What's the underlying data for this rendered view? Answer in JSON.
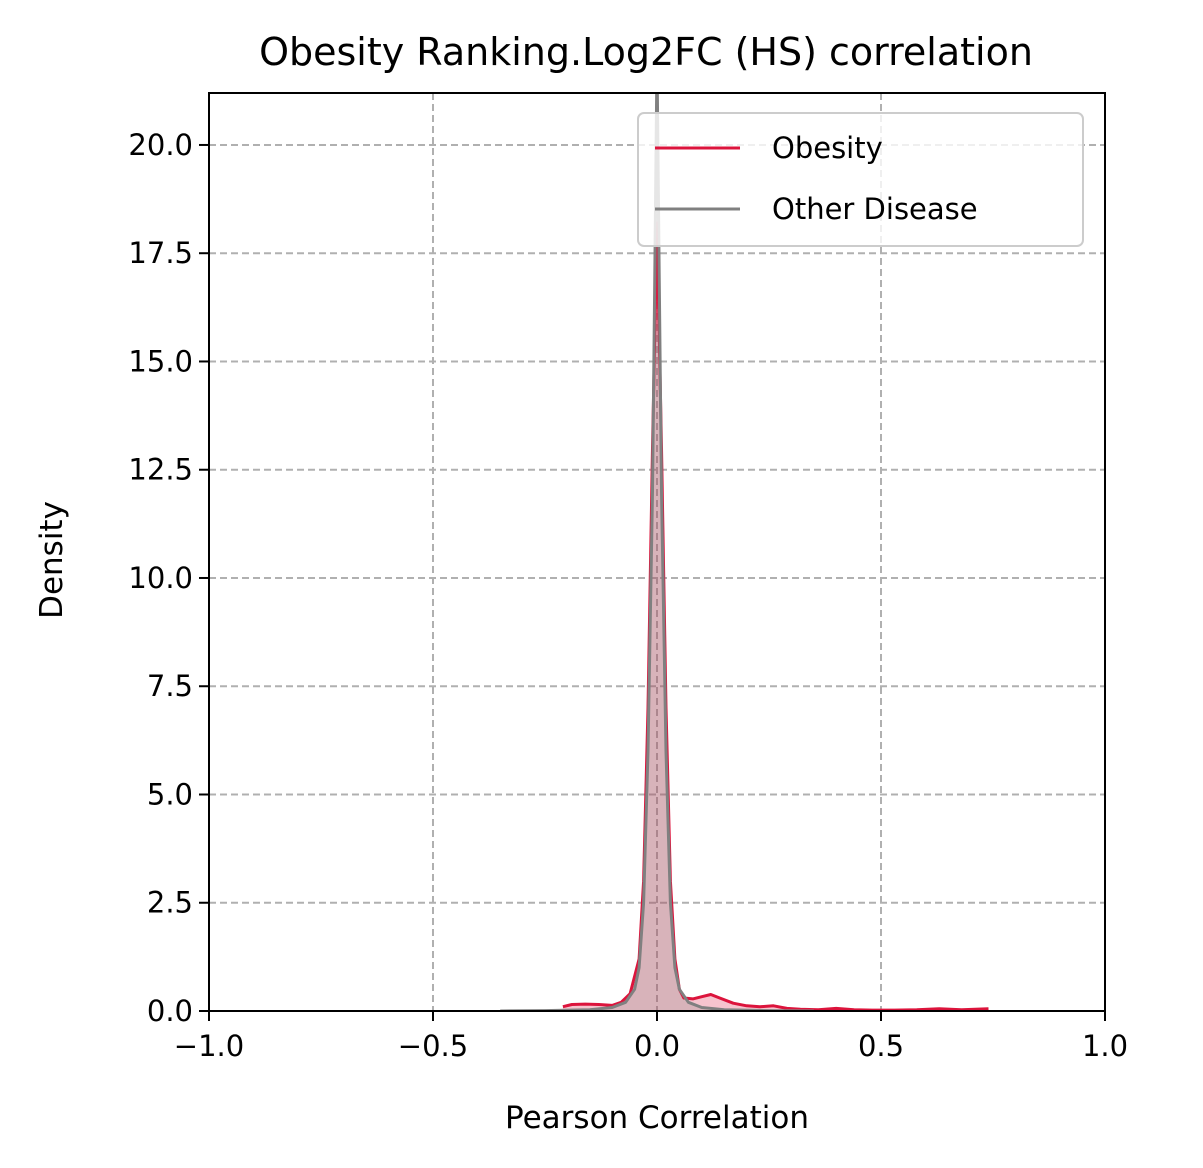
{
  "chart_data": {
    "type": "area",
    "title": "Obesity Ranking.Log2FC (HS) correlation",
    "xlabel": "Pearson Correlation",
    "ylabel": "Density",
    "xlim": [
      -1.0,
      1.0
    ],
    "ylim": [
      0,
      21.2
    ],
    "x_ticks": [
      "−1.0",
      "−0.5",
      "0.0",
      "0.5",
      "1.0"
    ],
    "x_tick_values": [
      -1.0,
      -0.5,
      0.0,
      0.5,
      1.0
    ],
    "y_ticks": [
      "0.0",
      "2.5",
      "5.0",
      "7.5",
      "10.0",
      "12.5",
      "15.0",
      "17.5",
      "20.0"
    ],
    "y_tick_values": [
      0,
      2.5,
      5.0,
      7.5,
      10.0,
      12.5,
      15.0,
      17.5,
      20.0
    ],
    "grid": true,
    "legend_position": "top-right",
    "series": [
      {
        "name": "Obesity",
        "color": "#dc143c",
        "fill_opacity": 0.25,
        "x": [
          -0.21,
          -0.19,
          -0.16,
          -0.13,
          -0.1,
          -0.08,
          -0.06,
          -0.04,
          -0.03,
          -0.02,
          -0.01,
          0.0,
          0.01,
          0.02,
          0.03,
          0.04,
          0.05,
          0.06,
          0.08,
          0.1,
          0.12,
          0.14,
          0.17,
          0.2,
          0.23,
          0.26,
          0.29,
          0.32,
          0.36,
          0.4,
          0.44,
          0.48,
          0.53,
          0.58,
          0.63,
          0.68,
          0.74
        ],
        "y": [
          0.1,
          0.15,
          0.16,
          0.15,
          0.13,
          0.2,
          0.4,
          1.2,
          3.0,
          7.0,
          13.0,
          18.2,
          13.0,
          7.0,
          3.0,
          1.2,
          0.5,
          0.3,
          0.28,
          0.33,
          0.38,
          0.3,
          0.18,
          0.12,
          0.1,
          0.12,
          0.06,
          0.04,
          0.03,
          0.06,
          0.03,
          0.02,
          0.02,
          0.03,
          0.05,
          0.03,
          0.05
        ]
      },
      {
        "name": "Other Disease",
        "color": "#808080",
        "fill_opacity": 0.25,
        "x": [
          -0.35,
          -0.25,
          -0.15,
          -0.1,
          -0.07,
          -0.05,
          -0.04,
          -0.03,
          -0.02,
          -0.01,
          -0.005,
          0.0,
          0.005,
          0.01,
          0.02,
          0.03,
          0.04,
          0.05,
          0.07,
          0.1,
          0.15,
          0.25,
          0.35
        ],
        "y": [
          0.0,
          0.01,
          0.03,
          0.08,
          0.2,
          0.5,
          1.0,
          2.5,
          6.0,
          12.0,
          17.0,
          22.0,
          17.0,
          12.0,
          6.0,
          2.5,
          1.0,
          0.5,
          0.2,
          0.08,
          0.03,
          0.01,
          0.0
        ]
      }
    ]
  }
}
